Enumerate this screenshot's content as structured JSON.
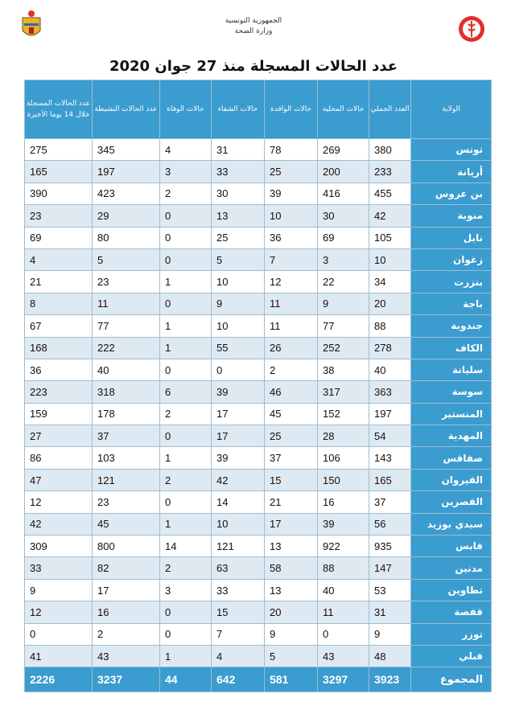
{
  "header": {
    "republic": "الجمهورية التونسية",
    "ministry": "وزارة الصحة"
  },
  "title": "عدد الحالات المسجلة منذ 27 جوان 2020",
  "columns": [
    "الولاية",
    "العدد الجملي",
    "حالات المحلية",
    "حالات الوافدة",
    "حالات الشفاء",
    "حالات الوفاة",
    "عدد الحالات النشيطة",
    "عدد الحالات المسجلة خلال 14 يوما الأخيرة"
  ],
  "rows": [
    [
      "تونس",
      "380",
      "269",
      "78",
      "31",
      "4",
      "345",
      "275"
    ],
    [
      "أريانة",
      "233",
      "200",
      "25",
      "33",
      "3",
      "197",
      "165"
    ],
    [
      "بن عروس",
      "455",
      "416",
      "39",
      "30",
      "2",
      "423",
      "390"
    ],
    [
      "منوبة",
      "42",
      "30",
      "10",
      "13",
      "0",
      "29",
      "23"
    ],
    [
      "نابل",
      "105",
      "69",
      "36",
      "25",
      "0",
      "80",
      "69"
    ],
    [
      "زغوان",
      "10",
      "3",
      "7",
      "5",
      "0",
      "5",
      "4"
    ],
    [
      "بنزرت",
      "34",
      "22",
      "12",
      "10",
      "1",
      "23",
      "21"
    ],
    [
      "باجة",
      "20",
      "9",
      "11",
      "9",
      "0",
      "11",
      "8"
    ],
    [
      "جندوبة",
      "88",
      "77",
      "11",
      "10",
      "1",
      "77",
      "67"
    ],
    [
      "الكاف",
      "278",
      "252",
      "26",
      "55",
      "1",
      "222",
      "168"
    ],
    [
      "سليانة",
      "40",
      "38",
      "2",
      "0",
      "0",
      "40",
      "36"
    ],
    [
      "سوسة",
      "363",
      "317",
      "46",
      "39",
      "6",
      "318",
      "223"
    ],
    [
      "المنستير",
      "197",
      "152",
      "45",
      "17",
      "2",
      "178",
      "159"
    ],
    [
      "المهدية",
      "54",
      "28",
      "25",
      "17",
      "0",
      "37",
      "27"
    ],
    [
      "صفاقس",
      "143",
      "106",
      "37",
      "39",
      "1",
      "103",
      "86"
    ],
    [
      "القيروان",
      "165",
      "150",
      "15",
      "42",
      "2",
      "121",
      "47"
    ],
    [
      "القصرين",
      "37",
      "16",
      "21",
      "14",
      "0",
      "23",
      "12"
    ],
    [
      "سيدي بوزيد",
      "56",
      "39",
      "17",
      "10",
      "1",
      "45",
      "42"
    ],
    [
      "قابس",
      "935",
      "922",
      "13",
      "121",
      "14",
      "800",
      "309"
    ],
    [
      "مدنين",
      "147",
      "88",
      "58",
      "63",
      "2",
      "82",
      "33"
    ],
    [
      "تطاوين",
      "53",
      "40",
      "13",
      "33",
      "3",
      "17",
      "9"
    ],
    [
      "قفصة",
      "31",
      "11",
      "20",
      "15",
      "0",
      "16",
      "12"
    ],
    [
      "توزر",
      "9",
      "0",
      "9",
      "7",
      "0",
      "2",
      "0"
    ],
    [
      "قبلي",
      "48",
      "43",
      "5",
      "4",
      "1",
      "43",
      "41"
    ]
  ],
  "total": [
    "المجموع",
    "3923",
    "3297",
    "581",
    "642",
    "44",
    "3237",
    "2226"
  ],
  "colors": {
    "header_blue": "#3b9ccf",
    "stripe": "#dfe9f1"
  }
}
